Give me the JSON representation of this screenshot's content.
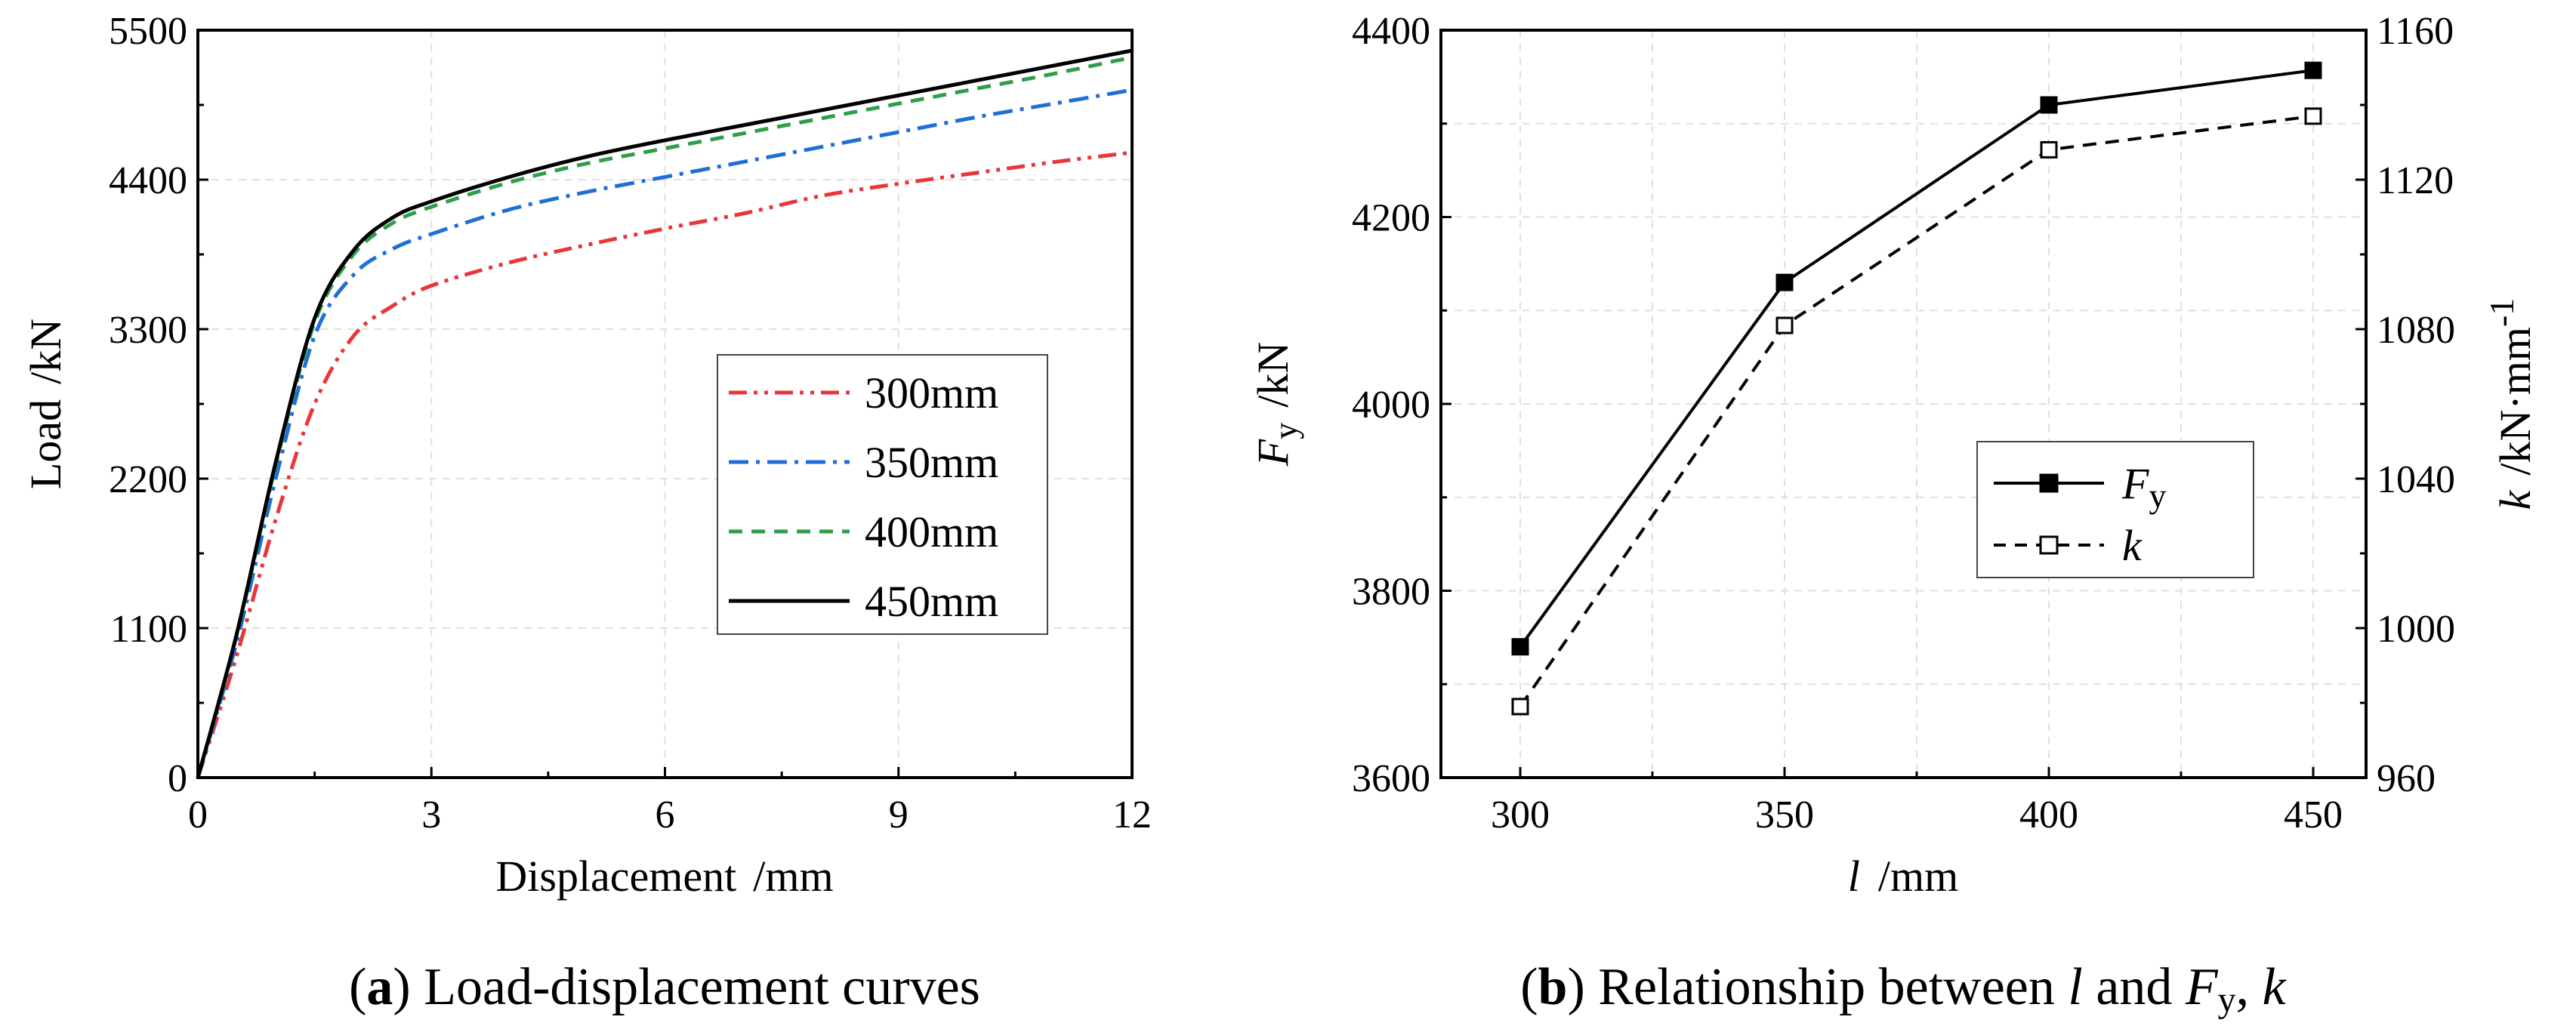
{
  "chart_data": [
    {
      "type": "line",
      "title": "",
      "caption_label": "a",
      "caption_text": "Load-displacement curves",
      "xlabel": "Displacement",
      "xunit": "/mm",
      "ylabel": "Load",
      "yunit": "/kN",
      "xlim": [
        0,
        12
      ],
      "ylim": [
        0,
        5500
      ],
      "xticks": [
        0,
        3,
        6,
        9,
        12
      ],
      "yticks": [
        0,
        1100,
        2200,
        3300,
        4400,
        5500
      ],
      "grid": true,
      "legend_position": "center-right",
      "series": [
        {
          "name": "300mm",
          "color": "#e8363a",
          "dash": "dash-dot-dot",
          "x": [
            0,
            0.5,
            1.0,
            1.5,
            2.0,
            2.5,
            3,
            4,
            5,
            6,
            7,
            8,
            9,
            10,
            11,
            12
          ],
          "y": [
            0,
            900,
            1900,
            2750,
            3250,
            3470,
            3620,
            3790,
            3920,
            4040,
            4150,
            4280,
            4370,
            4450,
            4530,
            4600
          ]
        },
        {
          "name": "350mm",
          "color": "#1f6fd6",
          "dash": "dash-dot",
          "x": [
            0,
            0.5,
            1.0,
            1.5,
            2.0,
            2.5,
            3,
            4,
            5,
            6,
            7,
            8,
            9,
            10,
            11,
            12
          ],
          "y": [
            0,
            1000,
            2200,
            3250,
            3700,
            3890,
            4000,
            4180,
            4310,
            4420,
            4530,
            4640,
            4750,
            4860,
            4960,
            5060
          ]
        },
        {
          "name": "400mm",
          "color": "#2e9e4a",
          "dash": "dash",
          "x": [
            0,
            0.5,
            1.0,
            1.5,
            2.0,
            2.5,
            3,
            4,
            5,
            6,
            7,
            8,
            9,
            10,
            11,
            12
          ],
          "y": [
            0,
            1050,
            2300,
            3350,
            3850,
            4080,
            4200,
            4380,
            4520,
            4630,
            4740,
            4850,
            4960,
            5070,
            5180,
            5300
          ]
        },
        {
          "name": "450mm",
          "color": "#000000",
          "dash": "solid",
          "x": [
            0,
            0.5,
            1.0,
            1.5,
            2.0,
            2.5,
            3,
            4,
            5,
            6,
            7,
            8,
            9,
            10,
            11,
            12
          ],
          "y": [
            0,
            1060,
            2320,
            3380,
            3880,
            4120,
            4240,
            4420,
            4570,
            4690,
            4800,
            4910,
            5020,
            5130,
            5240,
            5350
          ]
        }
      ]
    },
    {
      "type": "line",
      "title": "",
      "caption_label": "b",
      "caption_pre": "Relationship between ",
      "caption_l": "l",
      "caption_mid": " and ",
      "caption_F": "F",
      "caption_Fsub": "y",
      "caption_sep": ", ",
      "caption_k": "k",
      "xlabel_var": "l",
      "xunit": "/mm",
      "ylabel_var": "F",
      "ylabel_sub": "y",
      "yunit": "/kN",
      "y2label_var": "k",
      "y2unit": "/kN·mm",
      "y2unit_exp": "-1",
      "xlim": [
        285,
        460
      ],
      "ylim": [
        3600,
        4400
      ],
      "y2lim": [
        960,
        1160
      ],
      "xticks": [
        300,
        350,
        400,
        450
      ],
      "yticks": [
        3600,
        3800,
        4000,
        4200,
        4400
      ],
      "y2ticks": [
        960,
        1000,
        1040,
        1080,
        1120,
        1160
      ],
      "grid": true,
      "legend_position": "center-right",
      "series": [
        {
          "name": "F",
          "name_sub": "y",
          "axis": "left",
          "marker": "filled-square",
          "dash": "solid",
          "x": [
            300,
            350,
            400,
            450
          ],
          "y": [
            3740,
            4130,
            4320,
            4357
          ]
        },
        {
          "name": "k",
          "axis": "right",
          "marker": "open-square",
          "dash": "dash",
          "x": [
            300,
            350,
            400,
            450
          ],
          "y": [
            979,
            1081,
            1128,
            1137
          ]
        }
      ]
    }
  ]
}
